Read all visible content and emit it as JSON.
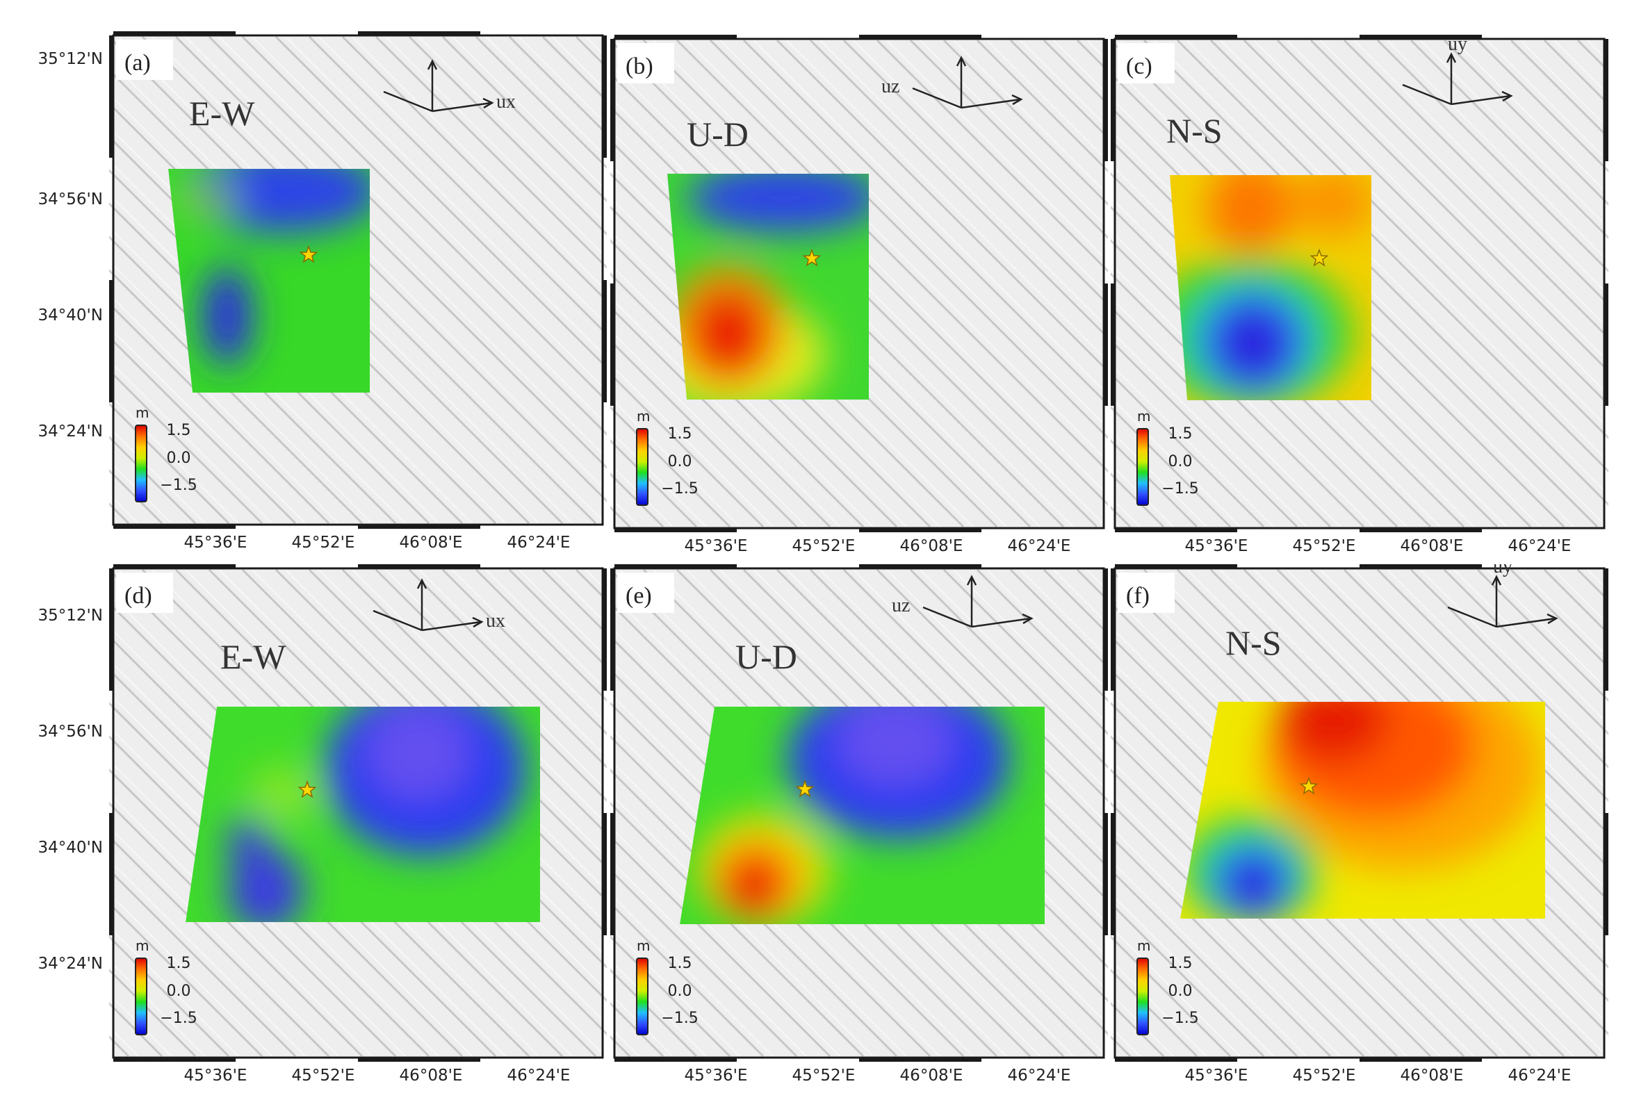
{
  "figure": {
    "lat_labels": [
      "35°12'N",
      "34°56'N",
      "34°40'N",
      "34°24'N"
    ],
    "lon_labels": [
      "45°36'E",
      "45°52'E",
      "46°08'E",
      "46°24'E"
    ],
    "colorbar": {
      "unit": "m",
      "ticks": [
        "1.5",
        "0.0",
        "−1.5"
      ],
      "range": [
        -1.5,
        1.5
      ],
      "colormap": [
        "#0000d0",
        "#3050ff",
        "#20c0ff",
        "#20e020",
        "#d0f000",
        "#ffd000",
        "#ff7000",
        "#e00000"
      ]
    },
    "colors": {
      "hillshade_light": "#eeeeee",
      "hillshade_dark": "#9a9a9a",
      "frame": "#1a1a1a",
      "epicenter_star": "#ffd700"
    },
    "epicenter_marker": "star-icon",
    "panels": [
      {
        "id": "a",
        "label": "(a)",
        "component": "E-W",
        "axis_label": "ux"
      },
      {
        "id": "b",
        "label": "(b)",
        "component": "U-D",
        "axis_label": "uz"
      },
      {
        "id": "c",
        "label": "(c)",
        "component": "N-S",
        "axis_label": "uy"
      },
      {
        "id": "d",
        "label": "(d)",
        "component": "E-W",
        "axis_label": "ux"
      },
      {
        "id": "e",
        "label": "(e)",
        "component": "U-D",
        "axis_label": "uz"
      },
      {
        "id": "f",
        "label": "(f)",
        "component": "N-S",
        "axis_label": "uy"
      }
    ]
  }
}
